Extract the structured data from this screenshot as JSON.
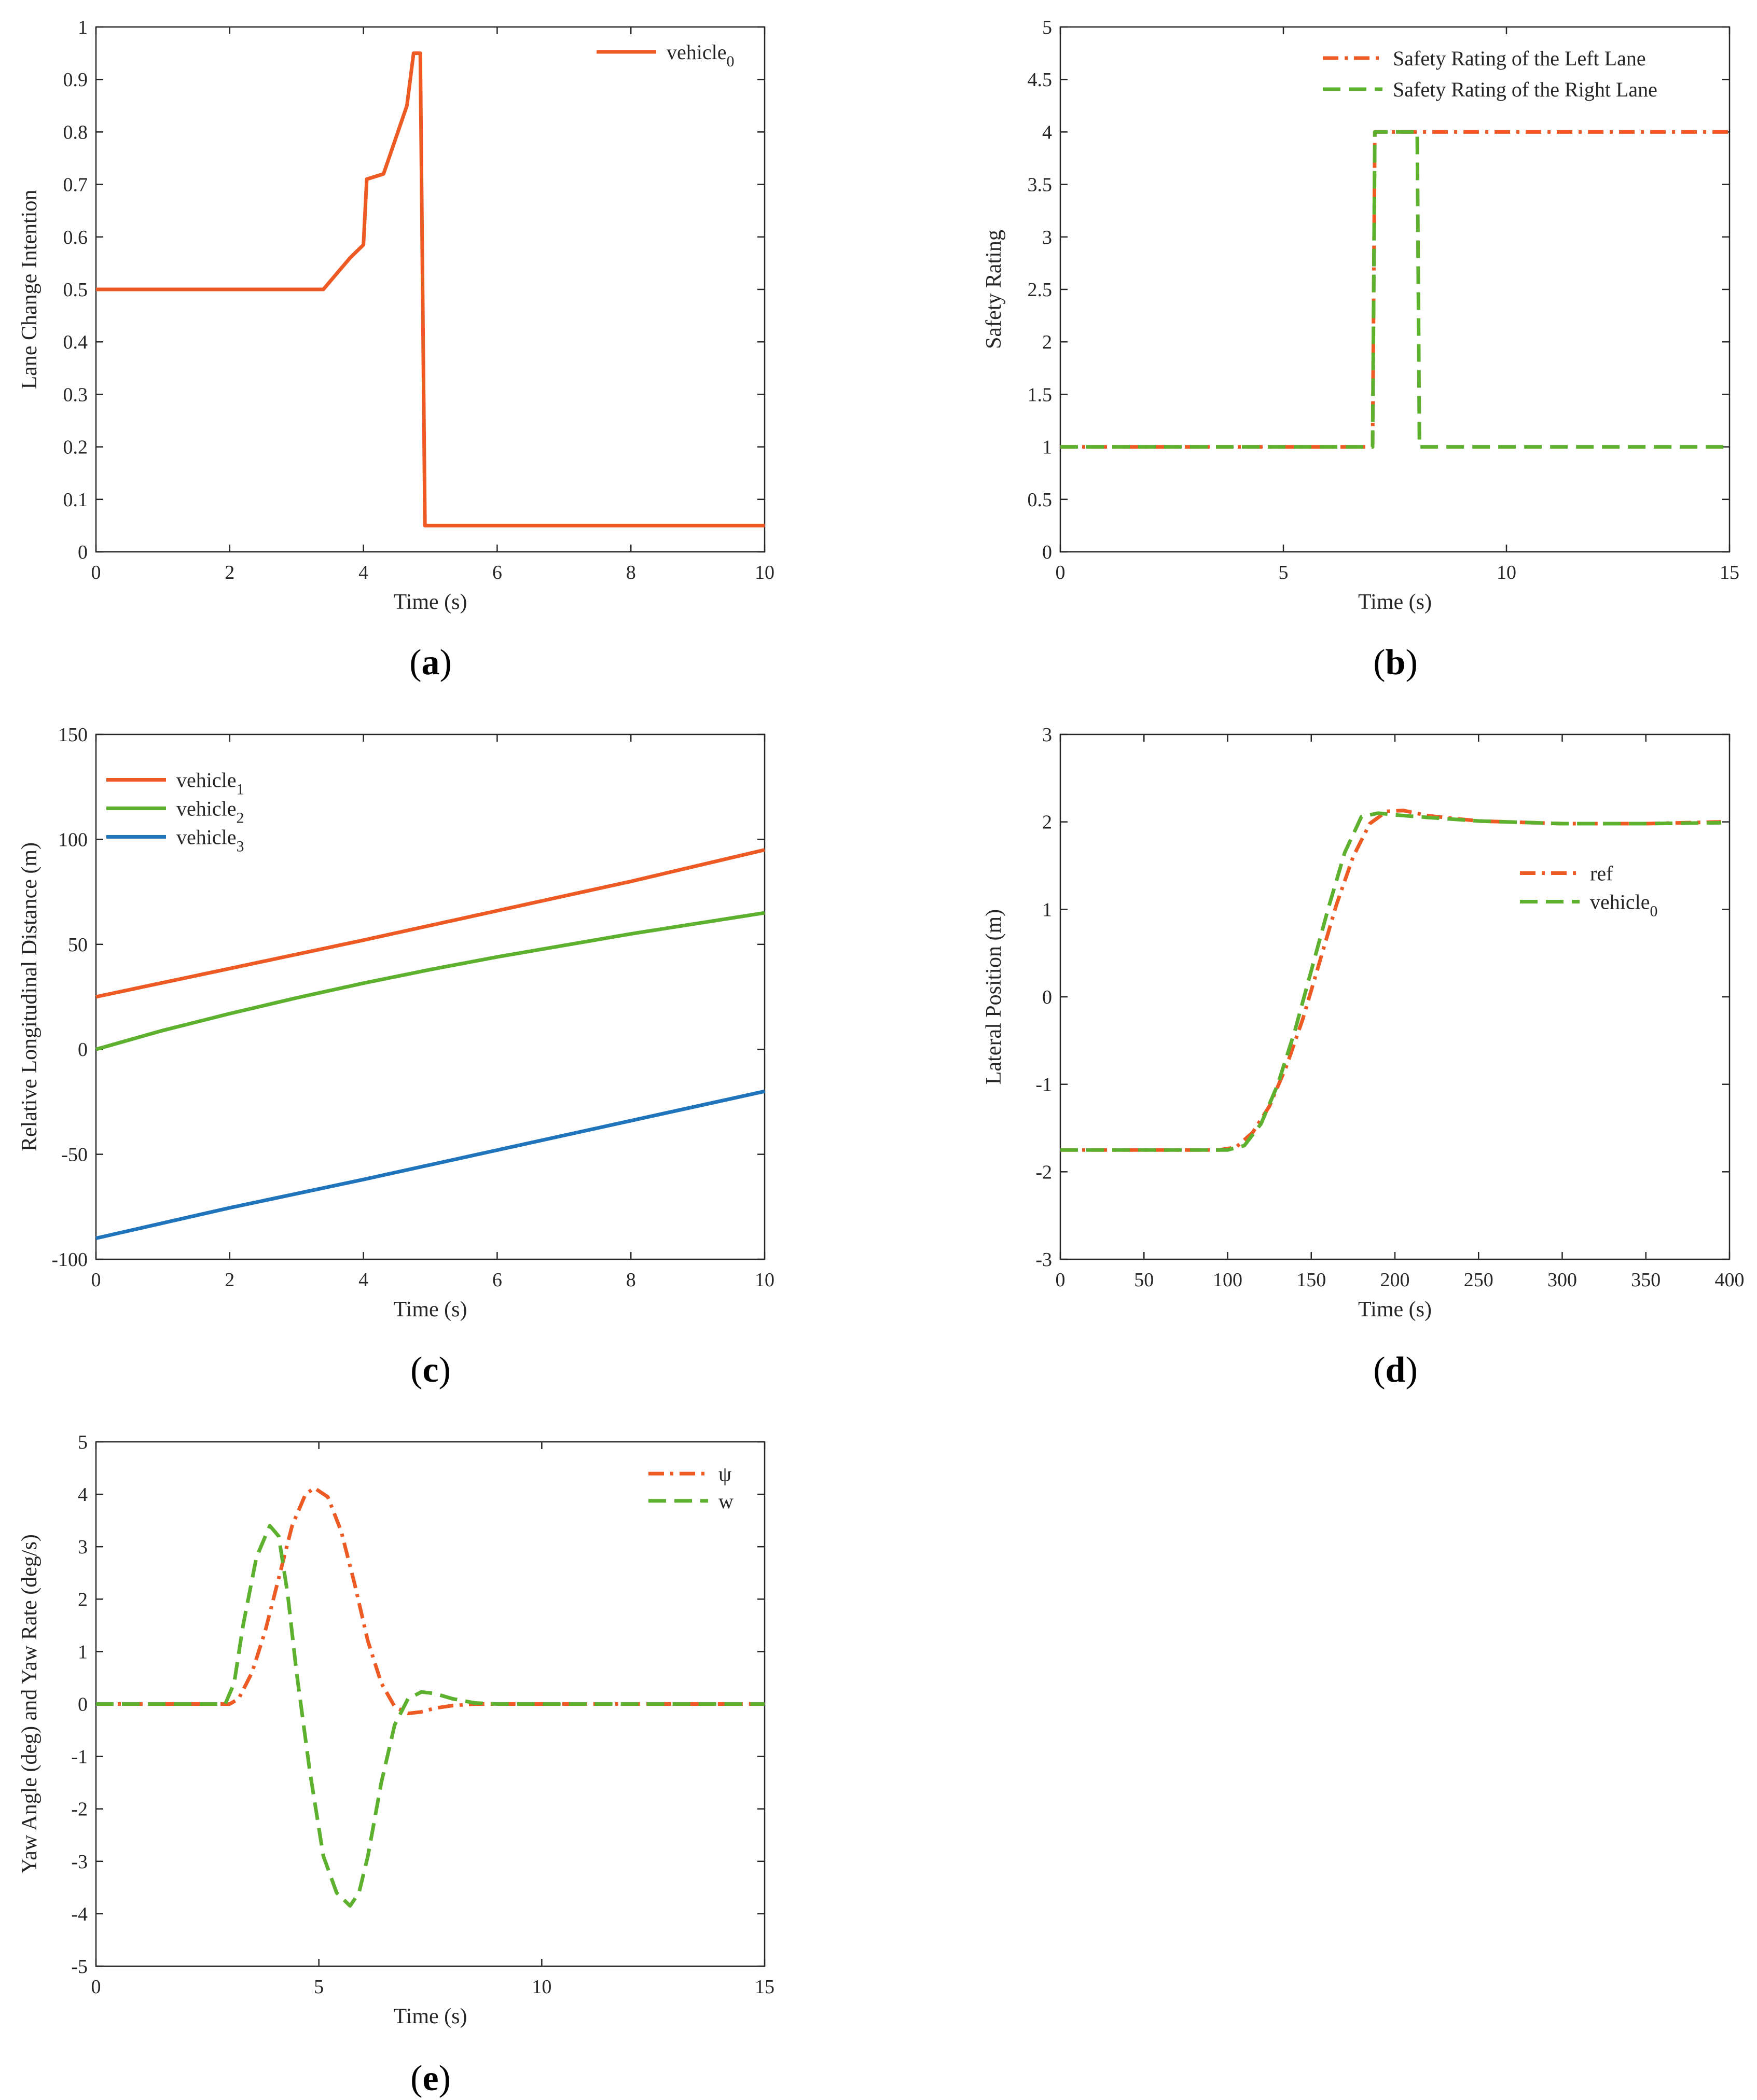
{
  "colors": {
    "orange": "#EE5A24",
    "green": "#5DB12F",
    "blue": "#1F74BC"
  },
  "chart_data": [
    {
      "id": "a",
      "type": "line",
      "panel_label": [
        "(",
        "a",
        ")"
      ],
      "xlabel": "Time (s)",
      "ylabel": "Lane Change Intention",
      "xlim": [
        0,
        10
      ],
      "ylim": [
        0,
        1
      ],
      "xticks": [
        0,
        2,
        4,
        6,
        8,
        10
      ],
      "xtick_labels": [
        "0",
        "2",
        "4",
        "6",
        "8",
        "10"
      ],
      "yticks": [
        0,
        0.1,
        0.2,
        0.3,
        0.4,
        0.5,
        0.6,
        0.7,
        0.8,
        0.9,
        1
      ],
      "ytick_labels": [
        "0",
        "0.1",
        "0.2",
        "0.3",
        "0.4",
        "0.5",
        "0.6",
        "0.7",
        "0.8",
        "0.9",
        "1"
      ],
      "legend_position": "top-right",
      "series": [
        {
          "name": "vehicle",
          "sub": "0",
          "color": "#EE5A24",
          "dash": "solid",
          "x": [
            0,
            3.4,
            3.6,
            3.8,
            4.0,
            4.05,
            4.3,
            4.65,
            4.75,
            4.85,
            4.92,
            10
          ],
          "y": [
            0.5,
            0.5,
            0.53,
            0.56,
            0.585,
            0.71,
            0.72,
            0.85,
            0.95,
            0.95,
            0.05,
            0.05
          ]
        }
      ]
    },
    {
      "id": "b",
      "type": "line",
      "panel_label": [
        "(",
        "b",
        ")"
      ],
      "xlabel": "Time (s)",
      "ylabel": "Safety Rating",
      "xlim": [
        0,
        15
      ],
      "ylim": [
        0,
        5
      ],
      "xticks": [
        0,
        5,
        10,
        15
      ],
      "xtick_labels": [
        "0",
        "5",
        "10",
        "15"
      ],
      "yticks": [
        0,
        0.5,
        1,
        1.5,
        2,
        2.5,
        3,
        3.5,
        4,
        4.5,
        5
      ],
      "ytick_labels": [
        "0",
        "0.5",
        "1",
        "1.5",
        "2",
        "2.5",
        "3",
        "3.5",
        "4",
        "4.5",
        "5"
      ],
      "legend_position": "top-right",
      "series": [
        {
          "name": "Safety Rating of the Left Lane",
          "color": "#EE5A24",
          "dash": "dashdot",
          "x": [
            0,
            7.0,
            7.05,
            15
          ],
          "y": [
            1,
            1,
            4,
            4
          ]
        },
        {
          "name": "Safety Rating of the Right Lane",
          "color": "#5DB12F",
          "dash": "dashed",
          "x": [
            0,
            7.0,
            7.05,
            8.0,
            8.05,
            15
          ],
          "y": [
            1,
            1,
            4,
            4,
            1,
            1
          ]
        }
      ]
    },
    {
      "id": "c",
      "type": "line",
      "panel_label": [
        "(",
        "c",
        ")"
      ],
      "xlabel": "Time (s)",
      "ylabel": "Relative Longitudinal Distance (m)",
      "xlim": [
        0,
        10
      ],
      "ylim": [
        -100,
        150
      ],
      "xticks": [
        0,
        2,
        4,
        6,
        8,
        10
      ],
      "xtick_labels": [
        "0",
        "2",
        "4",
        "6",
        "8",
        "10"
      ],
      "yticks": [
        -100,
        -50,
        0,
        50,
        100,
        150
      ],
      "ytick_labels": [
        "-100",
        "-50",
        "0",
        "50",
        "100",
        "150"
      ],
      "legend_position": "top-left",
      "series": [
        {
          "name": "vehicle",
          "sub": "1",
          "color": "#EE5A24",
          "dash": "solid",
          "x": [
            0,
            2,
            4,
            6,
            8,
            10
          ],
          "y": [
            25,
            38.5,
            52,
            66,
            80,
            95
          ]
        },
        {
          "name": "vehicle",
          "sub": "2",
          "color": "#5DB12F",
          "dash": "solid",
          "x": [
            0,
            1,
            2,
            3,
            4,
            5,
            6,
            7,
            8,
            9,
            10
          ],
          "y": [
            0,
            9,
            17,
            24.5,
            31.5,
            38,
            44,
            49.5,
            55,
            60,
            65
          ]
        },
        {
          "name": "vehicle",
          "sub": "3",
          "color": "#1F74BC",
          "dash": "solid",
          "x": [
            0,
            2,
            4,
            6,
            8,
            10
          ],
          "y": [
            -90,
            -75.5,
            -62,
            -48,
            -34,
            -20
          ]
        }
      ]
    },
    {
      "id": "d",
      "type": "line",
      "panel_label": [
        "(",
        "d",
        ")"
      ],
      "xlabel": "Time (s)",
      "ylabel": "Lateral Position (m)",
      "xlim": [
        0,
        400
      ],
      "ylim": [
        -3,
        3
      ],
      "xticks": [
        0,
        50,
        100,
        150,
        200,
        250,
        300,
        350,
        400
      ],
      "xtick_labels": [
        "0",
        "50",
        "100",
        "150",
        "200",
        "250",
        "300",
        "350",
        "400"
      ],
      "yticks": [
        -3,
        -2,
        -1,
        0,
        1,
        2,
        3
      ],
      "ytick_labels": [
        "-3",
        "-2",
        "-1",
        "0",
        "1",
        "2",
        "3"
      ],
      "legend_position": "right",
      "series": [
        {
          "name": "ref",
          "color": "#EE5A24",
          "dash": "dashdot",
          "x": [
            0,
            95,
            105,
            115,
            125,
            135,
            145,
            155,
            165,
            175,
            185,
            195,
            205,
            220,
            250,
            300,
            350,
            395
          ],
          "y": [
            -1.75,
            -1.75,
            -1.72,
            -1.55,
            -1.25,
            -0.8,
            -0.25,
            0.4,
            1.05,
            1.6,
            1.98,
            2.12,
            2.13,
            2.07,
            2.01,
            1.98,
            1.98,
            2.0
          ]
        },
        {
          "name": "vehicle",
          "sub": "0",
          "color": "#5DB12F",
          "dash": "dashed",
          "x": [
            0,
            100,
            110,
            120,
            130,
            140,
            150,
            160,
            170,
            180,
            190,
            200,
            220,
            250,
            300,
            350,
            395
          ],
          "y": [
            -1.75,
            -1.75,
            -1.7,
            -1.45,
            -1.0,
            -0.4,
            0.3,
            1.0,
            1.65,
            2.06,
            2.1,
            2.08,
            2.05,
            2.01,
            1.98,
            1.98,
            1.99
          ]
        }
      ]
    },
    {
      "id": "e",
      "type": "line",
      "panel_label": [
        "(",
        "e",
        ")"
      ],
      "xlabel": "Time (s)",
      "ylabel": "Yaw Angle (deg) and Yaw Rate (deg/s)",
      "xlim": [
        0,
        15
      ],
      "ylim": [
        -5,
        5
      ],
      "xticks": [
        0,
        5,
        10,
        15
      ],
      "xtick_labels": [
        "0",
        "5",
        "10",
        "15"
      ],
      "yticks": [
        -5,
        -4,
        -3,
        -2,
        -1,
        0,
        1,
        2,
        3,
        4,
        5
      ],
      "ytick_labels": [
        "-5",
        "-4",
        "-3",
        "-2",
        "-1",
        "0",
        "1",
        "2",
        "3",
        "4",
        "5"
      ],
      "legend_position": "top-right",
      "series": [
        {
          "name": "ψ",
          "color": "#EE5A24",
          "dash": "dashdot",
          "x": [
            0,
            3,
            3.2,
            3.5,
            3.8,
            4.1,
            4.4,
            4.7,
            4.9,
            5.2,
            5.5,
            5.8,
            6.1,
            6.4,
            6.7,
            7.0,
            7.3,
            7.6,
            8.0,
            8.5,
            9,
            10,
            15
          ],
          "y": [
            0,
            0,
            0.1,
            0.6,
            1.4,
            2.4,
            3.4,
            4.0,
            4.12,
            3.95,
            3.3,
            2.3,
            1.2,
            0.4,
            -0.05,
            -0.18,
            -0.15,
            -0.08,
            -0.03,
            0,
            0,
            0,
            0
          ]
        },
        {
          "name": "w",
          "color": "#5DB12F",
          "dash": "dashed",
          "x": [
            0,
            2.9,
            3.1,
            3.3,
            3.6,
            3.9,
            4.1,
            4.3,
            4.5,
            4.8,
            5.1,
            5.4,
            5.7,
            5.9,
            6.1,
            6.4,
            6.7,
            7.0,
            7.3,
            7.6,
            8.0,
            8.5,
            9,
            10,
            15
          ],
          "y": [
            0,
            0,
            0.4,
            1.5,
            2.8,
            3.4,
            3.2,
            2.1,
            0.6,
            -1.3,
            -2.9,
            -3.6,
            -3.85,
            -3.6,
            -2.9,
            -1.5,
            -0.4,
            0.1,
            0.23,
            0.2,
            0.1,
            0.02,
            0,
            0,
            0
          ]
        }
      ]
    }
  ]
}
